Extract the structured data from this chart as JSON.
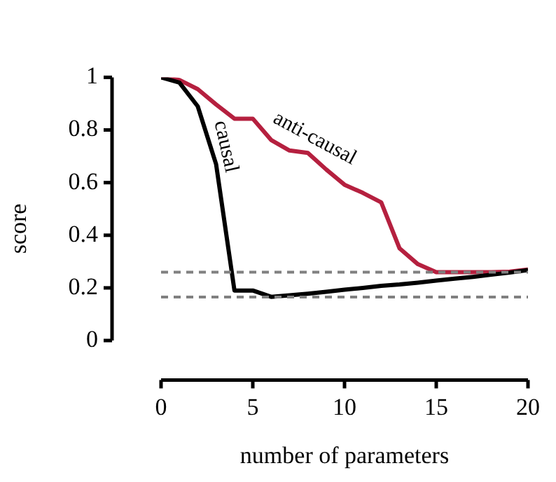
{
  "chart_data": {
    "type": "line",
    "xlabel": "number of parameters",
    "ylabel": "score",
    "x": [
      0,
      1,
      2,
      3,
      4,
      5,
      6,
      7,
      8,
      9,
      10,
      11,
      12,
      13,
      14,
      15,
      16,
      17,
      18,
      19,
      20
    ],
    "series": [
      {
        "name": "causal",
        "color": "#000000",
        "values": [
          1.0,
          0.98,
          0.89,
          0.67,
          0.19,
          0.19,
          0.166,
          0.172,
          0.178,
          0.185,
          0.193,
          0.2,
          0.208,
          0.213,
          0.22,
          0.228,
          0.235,
          0.242,
          0.25,
          0.258,
          0.268
        ]
      },
      {
        "name": "anti-causal",
        "color": "#b5203f",
        "values": [
          1.0,
          0.99,
          0.955,
          0.897,
          0.843,
          0.843,
          0.762,
          0.722,
          0.713,
          0.65,
          0.592,
          0.561,
          0.525,
          0.35,
          0.29,
          0.26,
          0.26,
          0.26,
          0.26,
          0.262,
          0.27
        ]
      }
    ],
    "xlim": [
      0,
      20
    ],
    "xticks": [
      0,
      5,
      10,
      15,
      20
    ],
    "ylim": [
      -0.15,
      1
    ],
    "yticks": [
      0,
      0.2,
      0.4,
      0.6,
      0.8,
      1
    ],
    "ref_lines": [
      {
        "axis": "y",
        "value": 0.26,
        "color": "#808080",
        "line_style": "dashed"
      },
      {
        "axis": "y",
        "value": 0.165,
        "color": "#808080",
        "line_style": "dashed"
      }
    ],
    "grid": false,
    "legend": false,
    "marker": "none",
    "line_style": "solid"
  }
}
